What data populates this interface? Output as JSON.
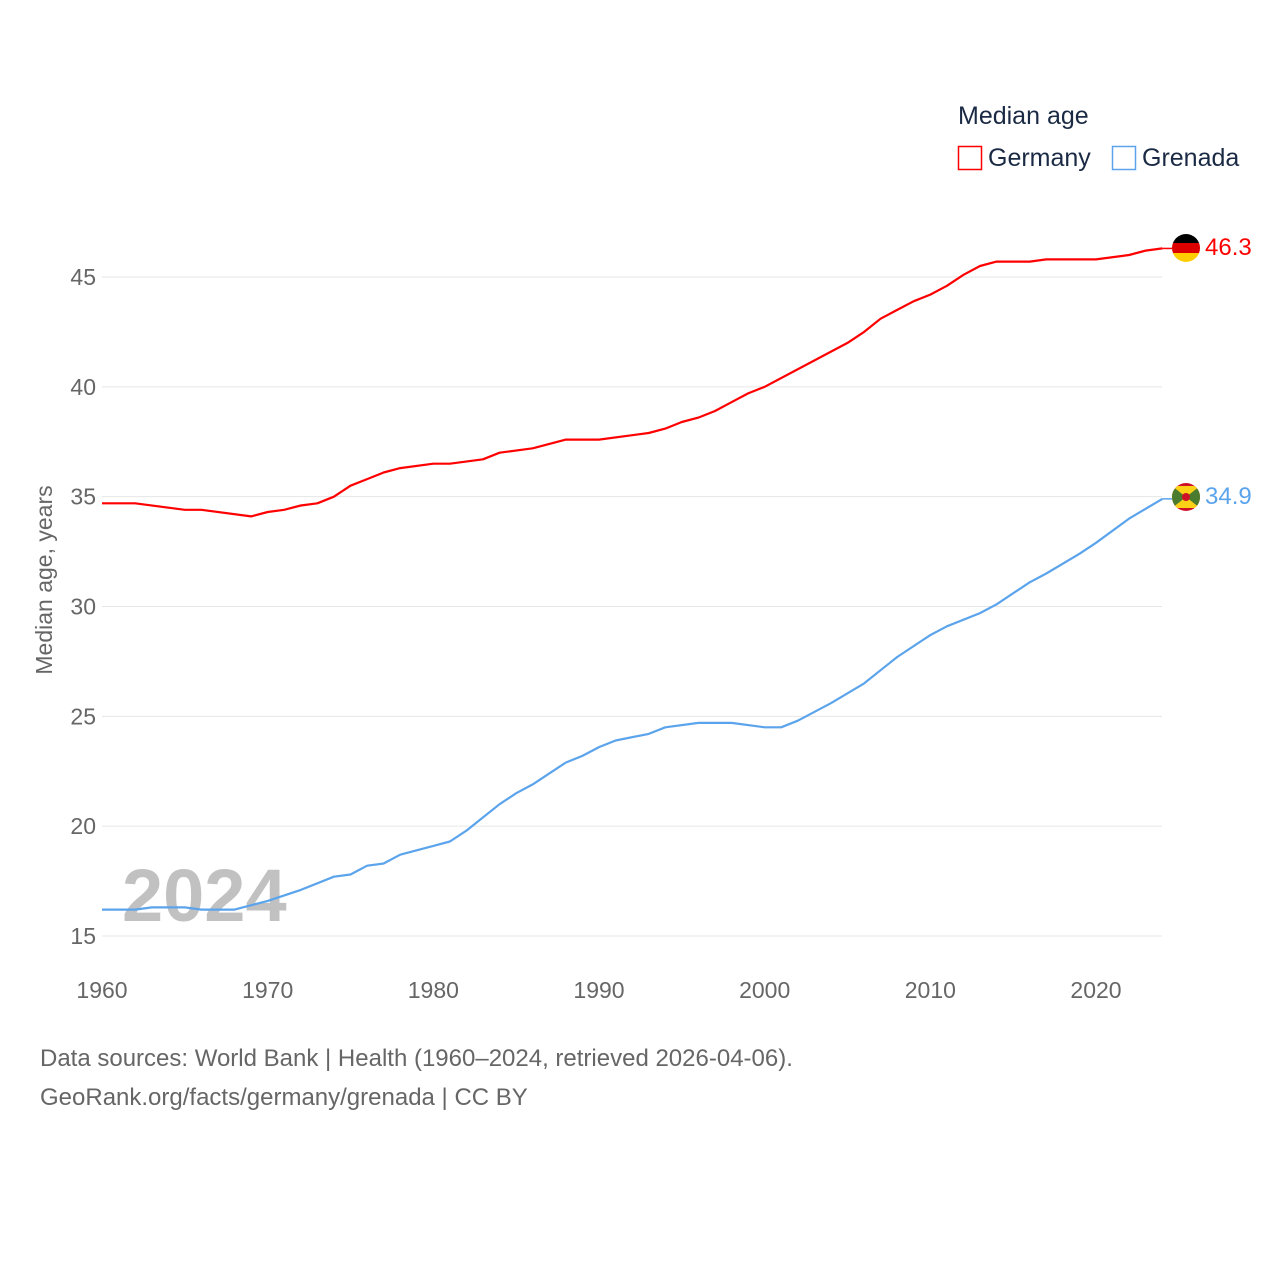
{
  "chart_data": {
    "type": "line",
    "title": "",
    "xlabel": "",
    "ylabel": "Median age, years",
    "xlim": [
      1960,
      2024
    ],
    "ylim": [
      15,
      46.3
    ],
    "x_ticks": [
      "1960",
      "1970",
      "1980",
      "1990",
      "2000",
      "2010",
      "2020"
    ],
    "y_ticks": [
      "15",
      "20",
      "25",
      "30",
      "35",
      "40",
      "45"
    ],
    "grid": true,
    "legend": {
      "title": "Median age",
      "placement": "top-right",
      "entries": [
        "Germany",
        "Grenada"
      ]
    },
    "watermark_year": "2024",
    "series": [
      {
        "name": "Germany",
        "color": "#ff0000",
        "end_label": "46.3",
        "x": [
          1960,
          1962,
          1965,
          1966,
          1969,
          1970,
          1971,
          1972,
          1973,
          1974,
          1975,
          1976,
          1977,
          1978,
          1980,
          1981,
          1983,
          1984,
          1986,
          1988,
          1990,
          1993,
          1994,
          1995,
          1996,
          1997,
          1998,
          1999,
          2000,
          2005,
          2006,
          2007,
          2008,
          2009,
          2010,
          2011,
          2012,
          2013,
          2014,
          2016,
          2017,
          2020,
          2022,
          2023,
          2024
        ],
        "y": [
          34.7,
          34.7,
          34.4,
          34.4,
          34.1,
          34.3,
          34.4,
          34.6,
          34.7,
          35.0,
          35.5,
          35.8,
          36.1,
          36.3,
          36.5,
          36.5,
          36.7,
          37.0,
          37.2,
          37.6,
          37.6,
          37.9,
          38.1,
          38.4,
          38.6,
          38.9,
          39.3,
          39.7,
          40.0,
          42.0,
          42.5,
          43.1,
          43.5,
          43.9,
          44.2,
          44.6,
          45.1,
          45.5,
          45.7,
          45.7,
          45.8,
          45.8,
          46.0,
          46.2,
          46.3
        ]
      },
      {
        "name": "Grenada",
        "color": "#5ba4ec",
        "end_label": "34.9",
        "x": [
          1960,
          1962,
          1963,
          1965,
          1966,
          1968,
          1970,
          1972,
          1974,
          1975,
          1976,
          1977,
          1978,
          1980,
          1981,
          1982,
          1983,
          1984,
          1985,
          1986,
          1987,
          1988,
          1989,
          1990,
          1991,
          1993,
          1994,
          1996,
          1998,
          2000,
          2001,
          2002,
          2004,
          2006,
          2007,
          2008,
          2010,
          2011,
          2013,
          2014,
          2016,
          2017,
          2019,
          2020,
          2022,
          2024
        ],
        "y": [
          16.2,
          16.2,
          16.3,
          16.3,
          16.2,
          16.2,
          16.6,
          17.1,
          17.7,
          17.8,
          18.2,
          18.3,
          18.7,
          19.1,
          19.3,
          19.8,
          20.4,
          21.0,
          21.5,
          21.9,
          22.4,
          22.9,
          23.2,
          23.6,
          23.9,
          24.2,
          24.5,
          24.7,
          24.7,
          24.5,
          24.5,
          24.8,
          25.6,
          26.5,
          27.1,
          27.7,
          28.7,
          29.1,
          29.7,
          30.1,
          31.1,
          31.5,
          32.4,
          32.9,
          34.0,
          34.9
        ]
      }
    ]
  },
  "footer": {
    "line1": "Data sources: World Bank | Health (1960–2024, retrieved 2026-04-06).",
    "line2": "GeoRank.org/facts/germany/grenada | CC BY"
  }
}
